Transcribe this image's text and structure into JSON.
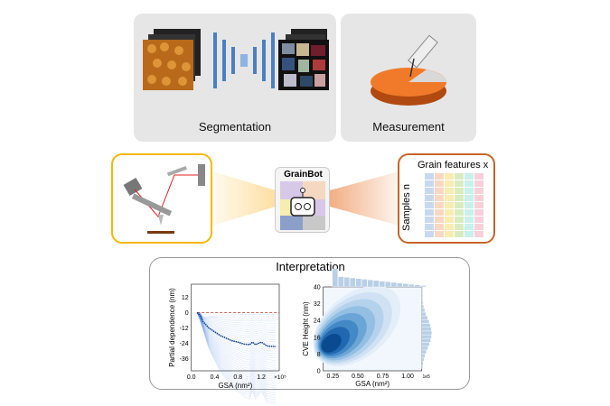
{
  "segmentation": {
    "label": "Segmentation"
  },
  "measurement": {
    "label": "Measurement"
  },
  "grainbot": {
    "title": "GrainBot"
  },
  "features": {
    "title": "Grain features x",
    "ylabel": "Samples n"
  },
  "interpretation": {
    "title": "Interpretation"
  },
  "colors": {
    "laser_border": "#f5b800",
    "features_border": "#c8642a",
    "panel_gray": "#e6e6e6",
    "chart_blue": "#1f5fbf",
    "reference_line": "#c0392b"
  },
  "chart_data": [
    {
      "type": "line",
      "xlabel": "GSA (nm²)",
      "ylabel": "Partial dependence (nm)",
      "x_multiplier": "×10⁵",
      "xlim": [
        0,
        1.45
      ],
      "ylim": [
        -44,
        20
      ],
      "xticks": [
        "0.0",
        "0.4",
        "0.8",
        "1.2"
      ],
      "yticks": [
        "12",
        "0",
        "-12",
        "-24",
        "-36"
      ],
      "reference_y": 0,
      "mean": {
        "x": [
          0.1,
          0.15,
          0.2,
          0.3,
          0.4,
          0.5,
          0.6,
          0.7,
          0.8,
          0.9,
          1.0,
          1.05,
          1.1,
          1.2,
          1.3,
          1.45
        ],
        "y": [
          0,
          -2,
          -7,
          -12,
          -15,
          -18,
          -20,
          -22,
          -23,
          -24.5,
          -25,
          -23,
          -25,
          -23,
          -26,
          -26.5
        ]
      }
    },
    {
      "type": "heatmap",
      "xlabel": "GSA (nm²)",
      "ylabel": "CVE Height (nm)",
      "x_multiplier": "1e5",
      "xlim": [
        0.06,
        1.15
      ],
      "ylim": [
        0,
        40
      ],
      "xticks": [
        "0.25",
        "0.50",
        "0.75",
        "1.00"
      ],
      "yticks": [
        "0",
        "8",
        "16",
        "24",
        "32",
        "40"
      ],
      "density_peak": {
        "x": 0.2,
        "y": 12
      },
      "marginal_histograms": true
    }
  ]
}
